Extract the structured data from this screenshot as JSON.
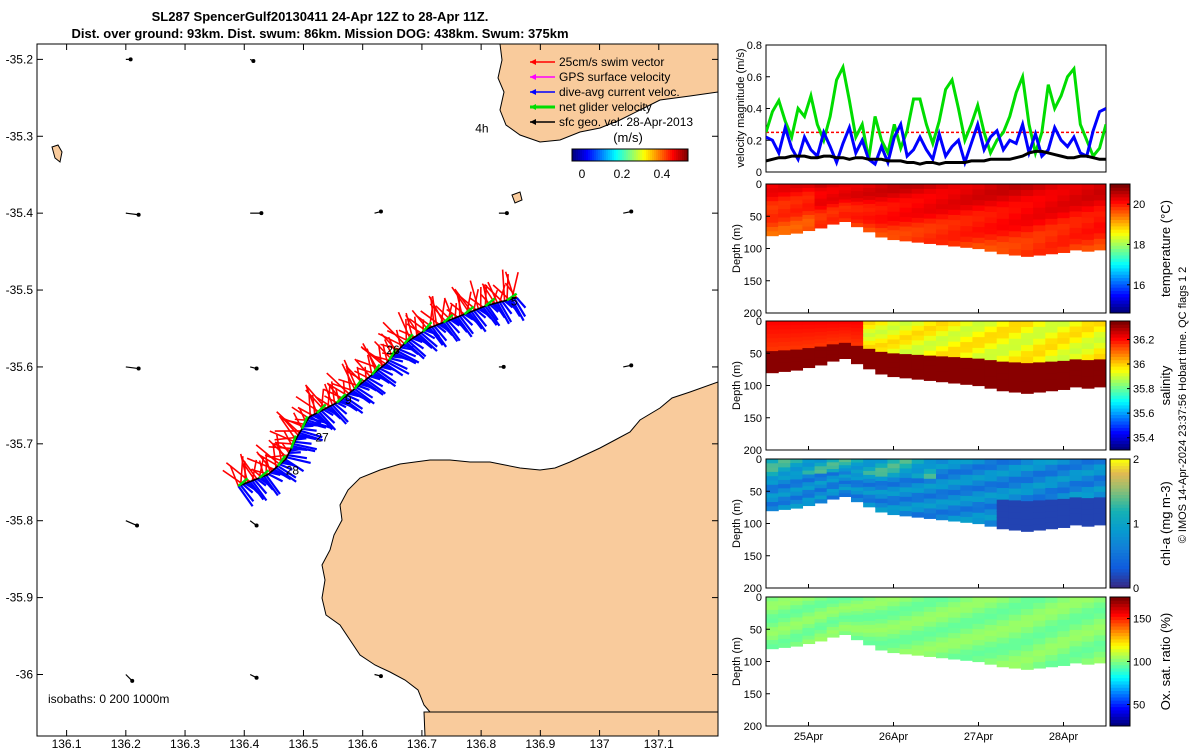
{
  "header": {
    "title_line1": "SL287 SpencerGulf20130411 24-Apr 12Z to 28-Apr 11Z.",
    "title_line2": "Dist. over ground: 93km. Dist. swum: 86km. Mission DOG: 438km. Swum: 375km"
  },
  "colors": {
    "land": "#f9cb9c",
    "swim": "#ff0000",
    "gps": "#ff00ff",
    "dive_avg": "#0000ff",
    "net_glider": "#00dd00",
    "sfc_geo": "#000000"
  },
  "chart_data": [
    {
      "type": "map",
      "xlim": [
        136.05,
        137.2
      ],
      "ylim": [
        -36.08,
        -35.18
      ],
      "x_ticks": [
        "136.1",
        "136.2",
        "136.3",
        "136.4",
        "136.5",
        "136.6",
        "136.7",
        "136.8",
        "136.9",
        "137",
        "137.1"
      ],
      "y_ticks": [
        "-35.2",
        "-35.3",
        "-35.4",
        "-35.5",
        "-35.6",
        "-35.7",
        "-35.8",
        "-35.9",
        "-36"
      ],
      "legend": [
        {
          "label": "25cm/s swim vector",
          "color": "#ff0000"
        },
        {
          "label": "GPS surface velocity",
          "color": "#ff00ff"
        },
        {
          "label": "dive-avg current veloc.",
          "color": "#0000ff"
        },
        {
          "label": "net glider velocity",
          "color": "#00dd00"
        },
        {
          "label": "sfc geo. vel. 28-Apr-2013",
          "color": "#000000"
        }
      ],
      "colorbar": {
        "label": "(m/s)",
        "ticks": [
          "0",
          "0.2",
          "0.4"
        ]
      },
      "isobaths_label": "isobaths: 0   200  1000m",
      "track": [
        {
          "lon": 136.39,
          "lat": -35.755
        },
        {
          "lon": 136.44,
          "lat": -35.74
        },
        {
          "lon": 136.47,
          "lat": -35.72
        },
        {
          "lon": 136.49,
          "lat": -35.69
        },
        {
          "lon": 136.51,
          "lat": -35.665
        },
        {
          "lon": 136.56,
          "lat": -35.645
        },
        {
          "lon": 136.6,
          "lat": -35.62
        },
        {
          "lon": 136.64,
          "lat": -35.595
        },
        {
          "lon": 136.67,
          "lat": -35.57
        },
        {
          "lon": 136.71,
          "lat": -35.55
        },
        {
          "lon": 136.76,
          "lat": -35.535
        },
        {
          "lon": 136.81,
          "lat": -35.52
        },
        {
          "lon": 136.86,
          "lat": -35.51
        }
      ],
      "day_labels": [
        {
          "text": "28",
          "lon": 136.47,
          "lat": -35.74
        },
        {
          "text": "27",
          "lon": 136.52,
          "lat": -35.697
        },
        {
          "text": "9",
          "lon": 136.57,
          "lat": -35.648
        },
        {
          "text": "26",
          "lon": 136.64,
          "lat": -35.583
        },
        {
          "text": "5",
          "lon": 136.85,
          "lat": -35.52
        },
        {
          "text": "4h",
          "lon": 136.79,
          "lat": -35.295
        }
      ],
      "sfc_vectors": [
        {
          "lon": 136.2,
          "lat": -35.2,
          "u": 0.03,
          "v": 0.0
        },
        {
          "lon": 136.41,
          "lat": -35.2,
          "u": 0.02,
          "v": -0.01
        },
        {
          "lon": 136.2,
          "lat": -35.4,
          "u": 0.08,
          "v": -0.01
        },
        {
          "lon": 136.41,
          "lat": -35.4,
          "u": 0.07,
          "v": 0.0
        },
        {
          "lon": 136.62,
          "lat": -35.4,
          "u": 0.04,
          "v": 0.01
        },
        {
          "lon": 136.83,
          "lat": -35.4,
          "u": 0.05,
          "v": 0.0
        },
        {
          "lon": 137.04,
          "lat": -35.4,
          "u": 0.05,
          "v": 0.01
        },
        {
          "lon": 136.2,
          "lat": -35.6,
          "u": 0.08,
          "v": -0.01
        },
        {
          "lon": 136.41,
          "lat": -35.6,
          "u": 0.04,
          "v": -0.01
        },
        {
          "lon": 136.83,
          "lat": -35.6,
          "u": 0.03,
          "v": 0.0
        },
        {
          "lon": 137.04,
          "lat": -35.6,
          "u": 0.05,
          "v": 0.01
        },
        {
          "lon": 136.2,
          "lat": -35.8,
          "u": 0.07,
          "v": -0.03
        },
        {
          "lon": 136.41,
          "lat": -35.8,
          "u": 0.04,
          "v": -0.03
        },
        {
          "lon": 136.2,
          "lat": -36.0,
          "u": 0.04,
          "v": -0.04
        },
        {
          "lon": 136.41,
          "lat": -36.0,
          "u": 0.04,
          "v": -0.02
        },
        {
          "lon": 136.62,
          "lat": -36.0,
          "u": 0.04,
          "v": -0.01
        }
      ]
    },
    {
      "type": "line",
      "ylabel": "velocity magnitude (m/s)",
      "ylim": [
        0,
        0.8
      ],
      "y_ticks": [
        "0",
        "0.2",
        "0.4",
        "0.6",
        "0.8"
      ],
      "x_range_days": [
        24.5,
        28.5
      ],
      "series": [
        {
          "color": "#00dd00",
          "values": [
            0.25,
            0.38,
            0.45,
            0.32,
            0.22,
            0.4,
            0.35,
            0.48,
            0.3,
            0.2,
            0.35,
            0.58,
            0.66,
            0.45,
            0.22,
            0.3,
            0.08,
            0.35,
            0.2,
            0.12,
            0.3,
            0.15,
            0.26,
            0.46,
            0.46,
            0.3,
            0.18,
            0.32,
            0.52,
            0.58,
            0.4,
            0.2,
            0.3,
            0.42,
            0.25,
            0.12,
            0.2,
            0.25,
            0.35,
            0.5,
            0.6,
            0.3,
            0.12,
            0.25,
            0.55,
            0.4,
            0.48,
            0.6,
            0.65,
            0.3,
            0.2,
            0.1,
            0.15,
            0.3
          ]
        },
        {
          "color": "#0000ff",
          "values": [
            0.22,
            0.2,
            0.12,
            0.28,
            0.15,
            0.08,
            0.22,
            0.14,
            0.1,
            0.25,
            0.16,
            0.06,
            0.18,
            0.28,
            0.12,
            0.2,
            0.08,
            0.05,
            0.16,
            0.06,
            0.22,
            0.3,
            0.1,
            0.14,
            0.22,
            0.14,
            0.08,
            0.24,
            0.1,
            0.16,
            0.2,
            0.06,
            0.18,
            0.3,
            0.14,
            0.22,
            0.26,
            0.14,
            0.2,
            0.18,
            0.3,
            0.12,
            0.24,
            0.1,
            0.14,
            0.28,
            0.2,
            0.16,
            0.22,
            0.12,
            0.1,
            0.26,
            0.38,
            0.4
          ]
        },
        {
          "color": "#000000",
          "values": [
            0.07,
            0.08,
            0.09,
            0.09,
            0.1,
            0.1,
            0.1,
            0.09,
            0.09,
            0.1,
            0.1,
            0.09,
            0.09,
            0.08,
            0.09,
            0.09,
            0.08,
            0.08,
            0.08,
            0.07,
            0.07,
            0.07,
            0.06,
            0.06,
            0.05,
            0.06,
            0.06,
            0.05,
            0.06,
            0.06,
            0.06,
            0.06,
            0.07,
            0.07,
            0.07,
            0.08,
            0.08,
            0.08,
            0.08,
            0.09,
            0.1,
            0.12,
            0.13,
            0.13,
            0.12,
            0.11,
            0.1,
            0.09,
            0.09,
            0.1,
            0.1,
            0.09,
            0.08,
            0.08
          ]
        }
      ],
      "swim_reference": {
        "color": "#ff0000",
        "value": 0.25
      }
    },
    {
      "type": "heatmap",
      "ylabel": "Depth (m)",
      "clabel": "temperature (°C)",
      "ylim": [
        0,
        200
      ],
      "y_ticks": [
        "0",
        "50",
        "100",
        "150",
        "200"
      ],
      "c_ticks": [
        "16",
        "18",
        "20"
      ],
      "crange": [
        14.6,
        21.0
      ],
      "bottom_depth": [
        80,
        78,
        76,
        72,
        68,
        62,
        58,
        66,
        74,
        82,
        86,
        88,
        90,
        92,
        94,
        96,
        98,
        100,
        104,
        108,
        110,
        112,
        110,
        108,
        106,
        102,
        104,
        102
      ],
      "upper_value": 20.3,
      "lower_value": 19.6
    },
    {
      "type": "heatmap",
      "ylabel": "Depth (m)",
      "clabel": "salinity",
      "ylim": [
        0,
        200
      ],
      "y_ticks": [
        "0",
        "50",
        "100",
        "150",
        "200"
      ],
      "c_ticks": [
        "35.4",
        "35.6",
        "35.8",
        "36",
        "36.2"
      ],
      "crange": [
        35.3,
        36.35
      ],
      "bottom_depth": [
        80,
        78,
        76,
        72,
        68,
        62,
        58,
        66,
        74,
        82,
        86,
        88,
        90,
        92,
        94,
        96,
        98,
        100,
        104,
        108,
        110,
        112,
        110,
        108,
        106,
        102,
        104,
        102
      ],
      "upper_value": 36.2,
      "lower_value": 36.34
    },
    {
      "type": "heatmap",
      "ylabel": "Depth (m)",
      "clabel": "chl-a (mg m-3)",
      "ylim": [
        0,
        200
      ],
      "y_ticks": [
        "0",
        "50",
        "100",
        "150",
        "200"
      ],
      "c_ticks": [
        "0",
        "1",
        "2"
      ],
      "crange": [
        0,
        2
      ],
      "bottom_depth": [
        80,
        78,
        76,
        72,
        68,
        62,
        58,
        66,
        74,
        82,
        86,
        88,
        90,
        92,
        94,
        96,
        98,
        100,
        104,
        108,
        110,
        112,
        110,
        108,
        106,
        102,
        104,
        102
      ],
      "upper_value": 0.85,
      "lower_value": 0.5
    },
    {
      "type": "heatmap",
      "ylabel": "Depth (m)",
      "clabel": "Ox. sat. ratio (%)",
      "ylim": [
        0,
        200
      ],
      "y_ticks": [
        "0",
        "50",
        "100",
        "150",
        "200"
      ],
      "c_ticks": [
        "50",
        "100",
        "150"
      ],
      "crange": [
        25,
        175
      ],
      "x_ticks": [
        "25Apr",
        "26Apr",
        "27Apr",
        "28Apr"
      ],
      "bottom_depth": [
        80,
        78,
        76,
        72,
        68,
        62,
        58,
        66,
        74,
        82,
        86,
        88,
        90,
        92,
        94,
        96,
        98,
        100,
        104,
        108,
        110,
        112,
        110,
        108,
        106,
        102,
        104,
        102
      ],
      "upper_value": 100,
      "lower_value": 95
    }
  ],
  "footer": {
    "credit": "© IMOS 14-Apr-2024 23:37:56 Hobart time. QC flags 1  2"
  }
}
